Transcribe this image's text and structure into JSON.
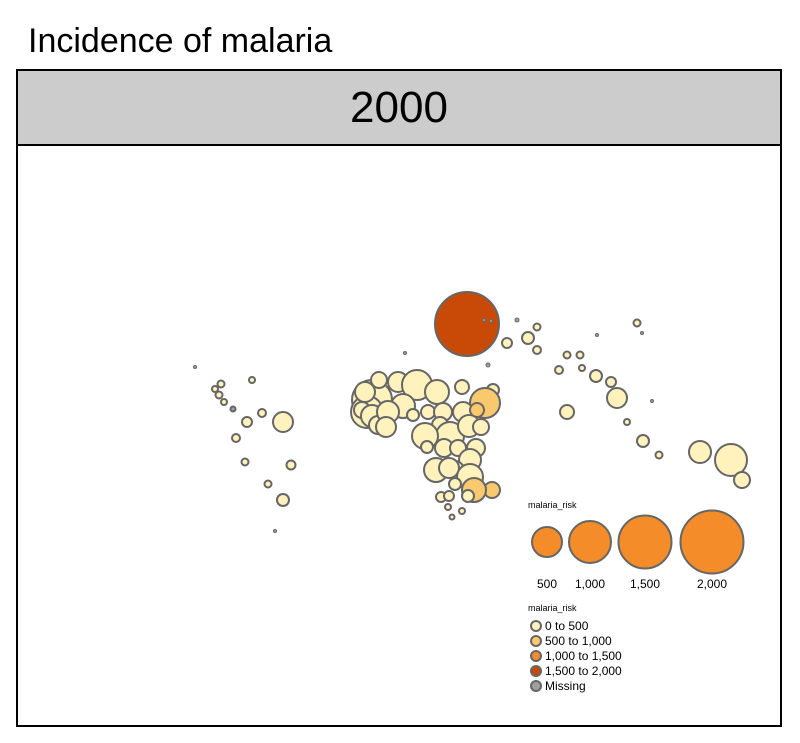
{
  "title": "Incidence of malaria",
  "panel": {
    "year": "2000"
  },
  "legend_size": {
    "title": "malaria_risk",
    "entries": [
      {
        "value": 500,
        "label": "500"
      },
      {
        "value": 1000,
        "label": "1,000"
      },
      {
        "value": 1500,
        "label": "1,500"
      },
      {
        "value": 2000,
        "label": "2,000"
      }
    ]
  },
  "legend_color": {
    "title": "malaria_risk",
    "entries": [
      {
        "label": "0 to 500",
        "color": "#fff2bd"
      },
      {
        "label": "500 to 1,000",
        "color": "#fbc96d"
      },
      {
        "label": "1,000 to 1,500",
        "color": "#f48c2a"
      },
      {
        "label": "1,500 to 2,000",
        "color": "#c94a06"
      },
      {
        "label": "Missing",
        "color": "#a0a0a0"
      }
    ]
  },
  "colors": {
    "stroke": "#666666",
    "size_legend_fill": "#f48c2a"
  }
}
